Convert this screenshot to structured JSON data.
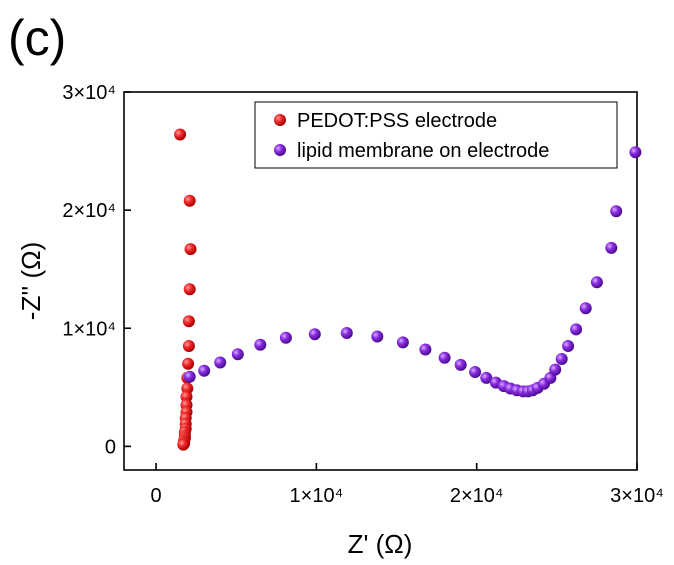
{
  "panel_label": "(c)",
  "chart_data": {
    "type": "scatter",
    "xlabel": "Z' (Ω)",
    "ylabel": "-Z'' (Ω)",
    "xlim": [
      -2000,
      30000
    ],
    "ylim": [
      -2000,
      30000
    ],
    "grid": false,
    "legend_position": "top-right",
    "x_ticks": [
      {
        "value": 0,
        "label": "0"
      },
      {
        "value": 10000,
        "label": "1×10⁴"
      },
      {
        "value": 20000,
        "label": "2×10⁴"
      },
      {
        "value": 30000,
        "label": "3×10⁴"
      }
    ],
    "y_ticks": [
      {
        "value": 0,
        "label": "0"
      },
      {
        "value": 10000,
        "label": "1×10⁴"
      },
      {
        "value": 20000,
        "label": "2×10⁴"
      },
      {
        "value": 30000,
        "label": "3×10⁴"
      }
    ],
    "series": [
      {
        "name": "PEDOT:PSS electrode",
        "color": "#e8141b",
        "points": [
          [
            1500,
            26400
          ],
          [
            2100,
            20800
          ],
          [
            2150,
            16700
          ],
          [
            2100,
            13300
          ],
          [
            2050,
            10600
          ],
          [
            2050,
            8500
          ],
          [
            2000,
            7000
          ],
          [
            1950,
            5800
          ],
          [
            1950,
            4900
          ],
          [
            1900,
            4200
          ],
          [
            1900,
            3500
          ],
          [
            1900,
            2900
          ],
          [
            1850,
            2400
          ],
          [
            1850,
            1900
          ],
          [
            1850,
            1500
          ],
          [
            1800,
            1200
          ],
          [
            1800,
            900
          ],
          [
            1800,
            700
          ],
          [
            1750,
            500
          ],
          [
            1750,
            350
          ],
          [
            1750,
            250
          ],
          [
            1700,
            150
          ]
        ]
      },
      {
        "name": "lipid membrane on electrode",
        "color": "#7b22d6",
        "points": [
          [
            2100,
            5900
          ],
          [
            3000,
            6400
          ],
          [
            4000,
            7100
          ],
          [
            5100,
            7800
          ],
          [
            6500,
            8600
          ],
          [
            8100,
            9200
          ],
          [
            9900,
            9500
          ],
          [
            11900,
            9600
          ],
          [
            13800,
            9300
          ],
          [
            15400,
            8800
          ],
          [
            16800,
            8200
          ],
          [
            18000,
            7500
          ],
          [
            19000,
            6900
          ],
          [
            19900,
            6300
          ],
          [
            20600,
            5800
          ],
          [
            21200,
            5400
          ],
          [
            21700,
            5100
          ],
          [
            22100,
            4900
          ],
          [
            22500,
            4750
          ],
          [
            22900,
            4650
          ],
          [
            23200,
            4650
          ],
          [
            23500,
            4750
          ],
          [
            23800,
            4950
          ],
          [
            24200,
            5300
          ],
          [
            24600,
            5800
          ],
          [
            24900,
            6500
          ],
          [
            25300,
            7400
          ],
          [
            25700,
            8500
          ],
          [
            26200,
            9900
          ],
          [
            26800,
            11700
          ],
          [
            27500,
            13900
          ],
          [
            28400,
            16800
          ],
          [
            28700,
            19900
          ],
          [
            29900,
            24900
          ]
        ]
      }
    ]
  }
}
